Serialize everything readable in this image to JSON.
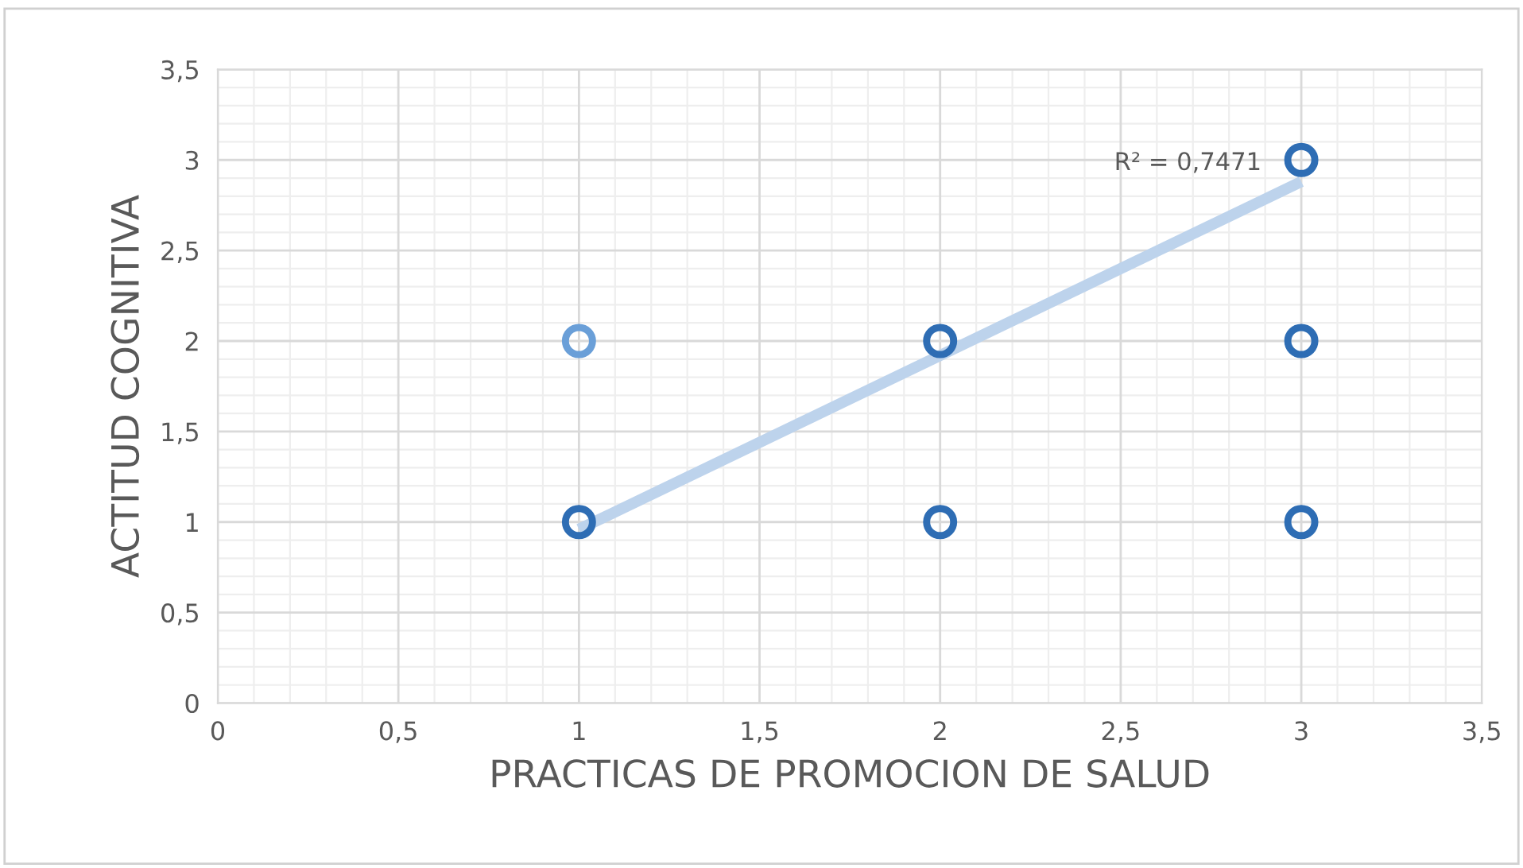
{
  "chart_data": {
    "type": "scatter",
    "xlabel": "PRACTICAS DE PROMOCION DE SALUD",
    "ylabel": "ACTITUD COGNITIVA",
    "series": [
      {
        "x": [
          1,
          1,
          2,
          2,
          3,
          3,
          3
        ],
        "values": [
          1,
          2,
          1,
          2,
          1,
          2,
          3
        ],
        "colors": [
          "#2e6db4",
          "#6a9fd8",
          "#2e6db4",
          "#2e6db4",
          "#2e6db4",
          "#2e6db4",
          "#2e6db4"
        ],
        "marker": "circle"
      },
      {
        "type": "line",
        "x": [
          1,
          3
        ],
        "values": [
          0.96,
          2.88
        ],
        "color": "#bdd3ec",
        "marker": "none"
      }
    ],
    "annotations": [
      {
        "text": "R² = 0,7471",
        "x": 3,
        "y": 2.88
      }
    ],
    "xlim": [
      0,
      3.5
    ],
    "ylim": [
      0,
      3.5
    ],
    "xticks": [
      0,
      {
        "value": 0.5,
        "label": "0,5"
      },
      1,
      {
        "value": 1.5,
        "label": "1,5"
      },
      2,
      {
        "value": 2.5,
        "label": "2,5"
      },
      3,
      {
        "value": 3.5,
        "label": "3,5"
      }
    ],
    "yticks": [
      0,
      {
        "value": 0.5,
        "label": "0,5"
      },
      1,
      {
        "value": 1.5,
        "label": "1,5"
      },
      2,
      {
        "value": 2.5,
        "label": "2,5"
      },
      3,
      {
        "value": 3.5,
        "label": "3,5"
      }
    ],
    "grid": true,
    "legend": false
  }
}
